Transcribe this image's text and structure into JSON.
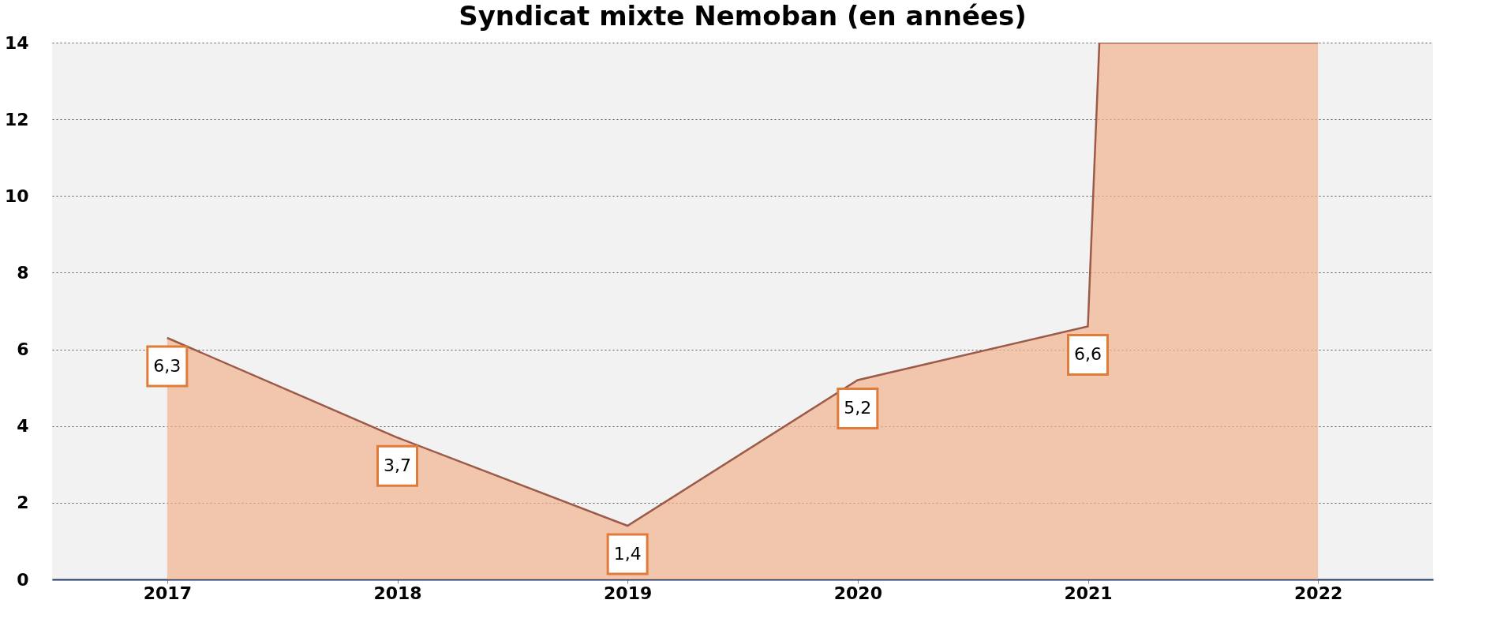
{
  "chart_data": {
    "type": "area",
    "title": "Syndicat mixte Nemoban (en années)",
    "x": [
      2017,
      2018,
      2019,
      2020,
      2021,
      2021.05,
      2022
    ],
    "values": [
      6.3,
      3.7,
      1.4,
      5.2,
      6.6,
      14,
      14
    ],
    "value_labels": [
      "6,3",
      "3,7",
      "1,4",
      "5,2",
      "6,6",
      null,
      null
    ],
    "color": "#f2b48f",
    "xlim": [
      2016.5,
      2022.5
    ],
    "xticks": [
      2017,
      2018,
      2019,
      2020,
      2021,
      2022
    ],
    "ylim": [
      0,
      14
    ],
    "yticks": [
      0,
      2,
      4,
      6,
      8,
      10,
      12,
      14
    ],
    "grid": "y"
  }
}
